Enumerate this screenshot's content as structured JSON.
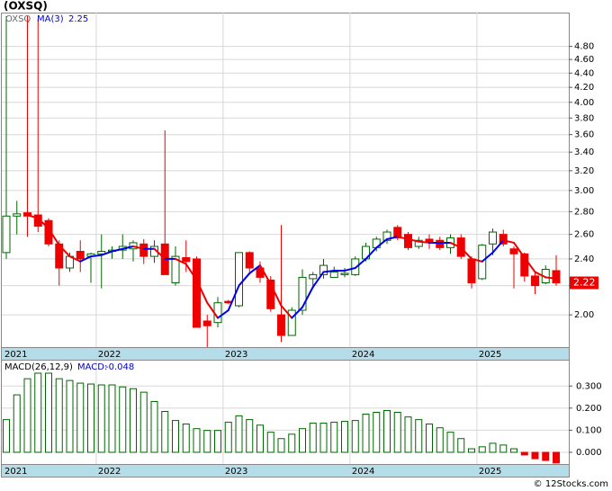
{
  "chart_data": {
    "type": "candlestick",
    "title": "(OXSQ)",
    "symbol": "OXSQ",
    "categories": [
      "2021",
      null,
      null,
      null,
      null,
      null,
      null,
      null,
      null,
      "2022",
      null,
      null,
      null,
      null,
      null,
      null,
      null,
      null,
      null,
      null,
      null,
      "2023",
      null,
      null,
      null,
      null,
      null,
      null,
      null,
      null,
      null,
      null,
      null,
      "2024",
      null,
      null,
      null,
      null,
      null,
      null,
      null,
      null,
      null,
      null,
      null,
      "2025",
      null,
      null,
      null,
      null,
      null,
      null,
      null
    ],
    "open": [
      2.45,
      2.76,
      2.79,
      2.77,
      2.72,
      2.52,
      2.33,
      2.46,
      2.42,
      2.44,
      2.46,
      2.47,
      2.48,
      2.52,
      2.42,
      2.52,
      2.22,
      2.41,
      2.4,
      1.96,
      1.95,
      2.09,
      2.06,
      2.45,
      2.33,
      2.24,
      2.0,
      1.87,
      2.03,
      2.25,
      2.28,
      2.26,
      2.28,
      2.28,
      2.4,
      2.49,
      2.55,
      2.66,
      2.6,
      2.5,
      2.56,
      2.55,
      2.49,
      2.57,
      2.4,
      2.25,
      2.52,
      2.6,
      2.48,
      2.44,
      2.27,
      2.22,
      2.31
    ],
    "high": [
      5.3,
      2.9,
      5.3,
      5.25,
      2.74,
      2.55,
      2.45,
      2.55,
      2.45,
      2.6,
      2.5,
      2.6,
      2.55,
      2.56,
      2.55,
      3.65,
      2.5,
      2.55,
      2.42,
      2.0,
      2.12,
      2.1,
      2.45,
      2.46,
      2.38,
      2.27,
      2.68,
      2.05,
      2.32,
      2.3,
      2.4,
      2.34,
      2.33,
      2.42,
      2.53,
      2.58,
      2.64,
      2.68,
      2.62,
      2.58,
      2.6,
      2.58,
      2.6,
      2.6,
      2.42,
      2.52,
      2.65,
      2.64,
      2.5,
      2.45,
      2.3,
      2.35,
      2.43
    ],
    "low": [
      2.4,
      2.6,
      2.58,
      2.62,
      2.5,
      2.2,
      2.3,
      2.3,
      2.22,
      2.18,
      2.4,
      2.4,
      2.38,
      2.36,
      2.37,
      2.28,
      2.2,
      2.3,
      1.92,
      1.8,
      1.92,
      2.07,
      2.05,
      2.28,
      2.22,
      2.02,
      1.83,
      1.87,
      2.0,
      2.18,
      2.25,
      2.26,
      2.26,
      2.27,
      2.38,
      2.46,
      2.52,
      2.55,
      2.47,
      2.48,
      2.48,
      2.47,
      2.44,
      2.4,
      2.18,
      2.24,
      2.43,
      2.5,
      2.18,
      2.23,
      2.14,
      2.21,
      2.2
    ],
    "close": [
      2.76,
      2.78,
      2.76,
      2.67,
      2.52,
      2.33,
      2.42,
      2.4,
      2.44,
      2.46,
      2.47,
      2.5,
      2.53,
      2.42,
      2.5,
      2.28,
      2.42,
      2.38,
      1.92,
      1.93,
      2.08,
      2.08,
      2.45,
      2.33,
      2.26,
      2.04,
      1.87,
      2.03,
      2.26,
      2.28,
      2.35,
      2.3,
      2.29,
      2.4,
      2.5,
      2.56,
      2.62,
      2.57,
      2.49,
      2.55,
      2.54,
      2.49,
      2.57,
      2.42,
      2.22,
      2.51,
      2.62,
      2.52,
      2.44,
      2.27,
      2.2,
      2.32,
      2.22
    ],
    "up_color": "#006600",
    "down_color": "#ee0000",
    "ma": {
      "name": "MA(3)",
      "up_color": "#0000ee",
      "down_color": "#ee0000",
      "values": [
        null,
        null,
        2.77,
        2.74,
        2.65,
        2.51,
        2.42,
        2.38,
        2.42,
        2.43,
        2.46,
        2.48,
        2.5,
        2.48,
        2.48,
        2.4,
        2.4,
        2.36,
        2.24,
        2.08,
        1.98,
        2.03,
        2.2,
        2.29,
        2.35,
        2.21,
        2.06,
        1.98,
        2.05,
        2.19,
        2.3,
        2.31,
        2.31,
        2.33,
        2.4,
        2.49,
        2.56,
        2.58,
        2.56,
        2.54,
        2.53,
        2.53,
        2.53,
        2.49,
        2.4,
        2.38,
        2.45,
        2.55,
        2.53,
        2.41,
        2.3,
        2.26,
        2.25
      ]
    },
    "ylim": [
      1.8,
      5.36
    ],
    "log_scale": true,
    "grid": true,
    "yticks": [
      {
        "value": 2.0,
        "label": "2.00"
      },
      {
        "value": 2.2,
        "label": "2.20"
      },
      {
        "value": 2.4,
        "label": "2.40"
      },
      {
        "value": 2.6,
        "label": "2.60"
      },
      {
        "value": 2.8,
        "label": "2.80"
      },
      {
        "value": 3.0,
        "label": "3.00"
      },
      {
        "value": 3.2,
        "label": "3.20"
      },
      {
        "value": 3.4,
        "label": "3.40"
      },
      {
        "value": 3.6,
        "label": "3.60"
      },
      {
        "value": 3.8,
        "label": "3.80"
      },
      {
        "value": 4.0,
        "label": "4.00"
      },
      {
        "value": 4.2,
        "label": "4.20"
      },
      {
        "value": 4.4,
        "label": "4.40"
      },
      {
        "value": 4.6,
        "label": "4.60"
      },
      {
        "value": 4.8,
        "label": "4.80"
      }
    ],
    "macd": {
      "type": "bar",
      "name": "MACD(26,12,9)",
      "label": "MACD:",
      "up_color": "#006600",
      "down_color": "#ee0000",
      "values": [
        0.148,
        0.26,
        0.333,
        0.358,
        0.358,
        0.333,
        0.325,
        0.313,
        0.309,
        0.305,
        0.305,
        0.296,
        0.288,
        0.272,
        0.23,
        0.185,
        0.144,
        0.128,
        0.107,
        0.099,
        0.099,
        0.136,
        0.165,
        0.148,
        0.123,
        0.091,
        0.062,
        0.082,
        0.107,
        0.132,
        0.132,
        0.136,
        0.14,
        0.144,
        0.173,
        0.181,
        0.189,
        0.181,
        0.16,
        0.148,
        0.128,
        0.111,
        0.091,
        0.062,
        0.016,
        0.025,
        0.041,
        0.033,
        0.016,
        -0.012,
        -0.029,
        -0.037,
        -0.048
      ],
      "ylim": [
        -0.053,
        0.415
      ],
      "yticks": [
        {
          "value": 0.0,
          "label": "0.000"
        },
        {
          "value": 0.1,
          "label": "0.100"
        },
        {
          "value": 0.2,
          "label": "0.200"
        },
        {
          "value": 0.3,
          "label": "0.300"
        }
      ]
    },
    "footer": "© 12Stocks.com"
  }
}
